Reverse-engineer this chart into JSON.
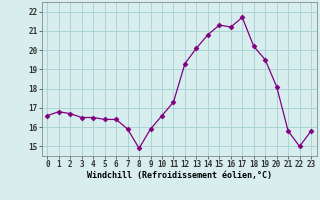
{
  "x": [
    0,
    1,
    2,
    3,
    4,
    5,
    6,
    7,
    8,
    9,
    10,
    11,
    12,
    13,
    14,
    15,
    16,
    17,
    18,
    19,
    20,
    21,
    22,
    23
  ],
  "y": [
    16.6,
    16.8,
    16.7,
    16.5,
    16.5,
    16.4,
    16.4,
    15.9,
    14.9,
    15.9,
    16.6,
    17.3,
    19.3,
    20.1,
    20.8,
    21.3,
    21.2,
    21.7,
    20.2,
    19.5,
    18.1,
    15.8,
    15.0,
    15.8
  ],
  "line_color": "#800080",
  "marker": "D",
  "marker_size": 2.5,
  "bg_color": "#d8eeee",
  "grid_color": "#aad4d4",
  "xlabel": "Windchill (Refroidissement éolien,°C)",
  "yticks": [
    15,
    16,
    17,
    18,
    19,
    20,
    21,
    22
  ],
  "xticks": [
    0,
    1,
    2,
    3,
    4,
    5,
    6,
    7,
    8,
    9,
    10,
    11,
    12,
    13,
    14,
    15,
    16,
    17,
    18,
    19,
    20,
    21,
    22,
    23
  ],
  "ylim": [
    14.5,
    22.5
  ],
  "xlim": [
    -0.5,
    23.5
  ],
  "label_fontsize": 6.0,
  "tick_fontsize": 5.5
}
